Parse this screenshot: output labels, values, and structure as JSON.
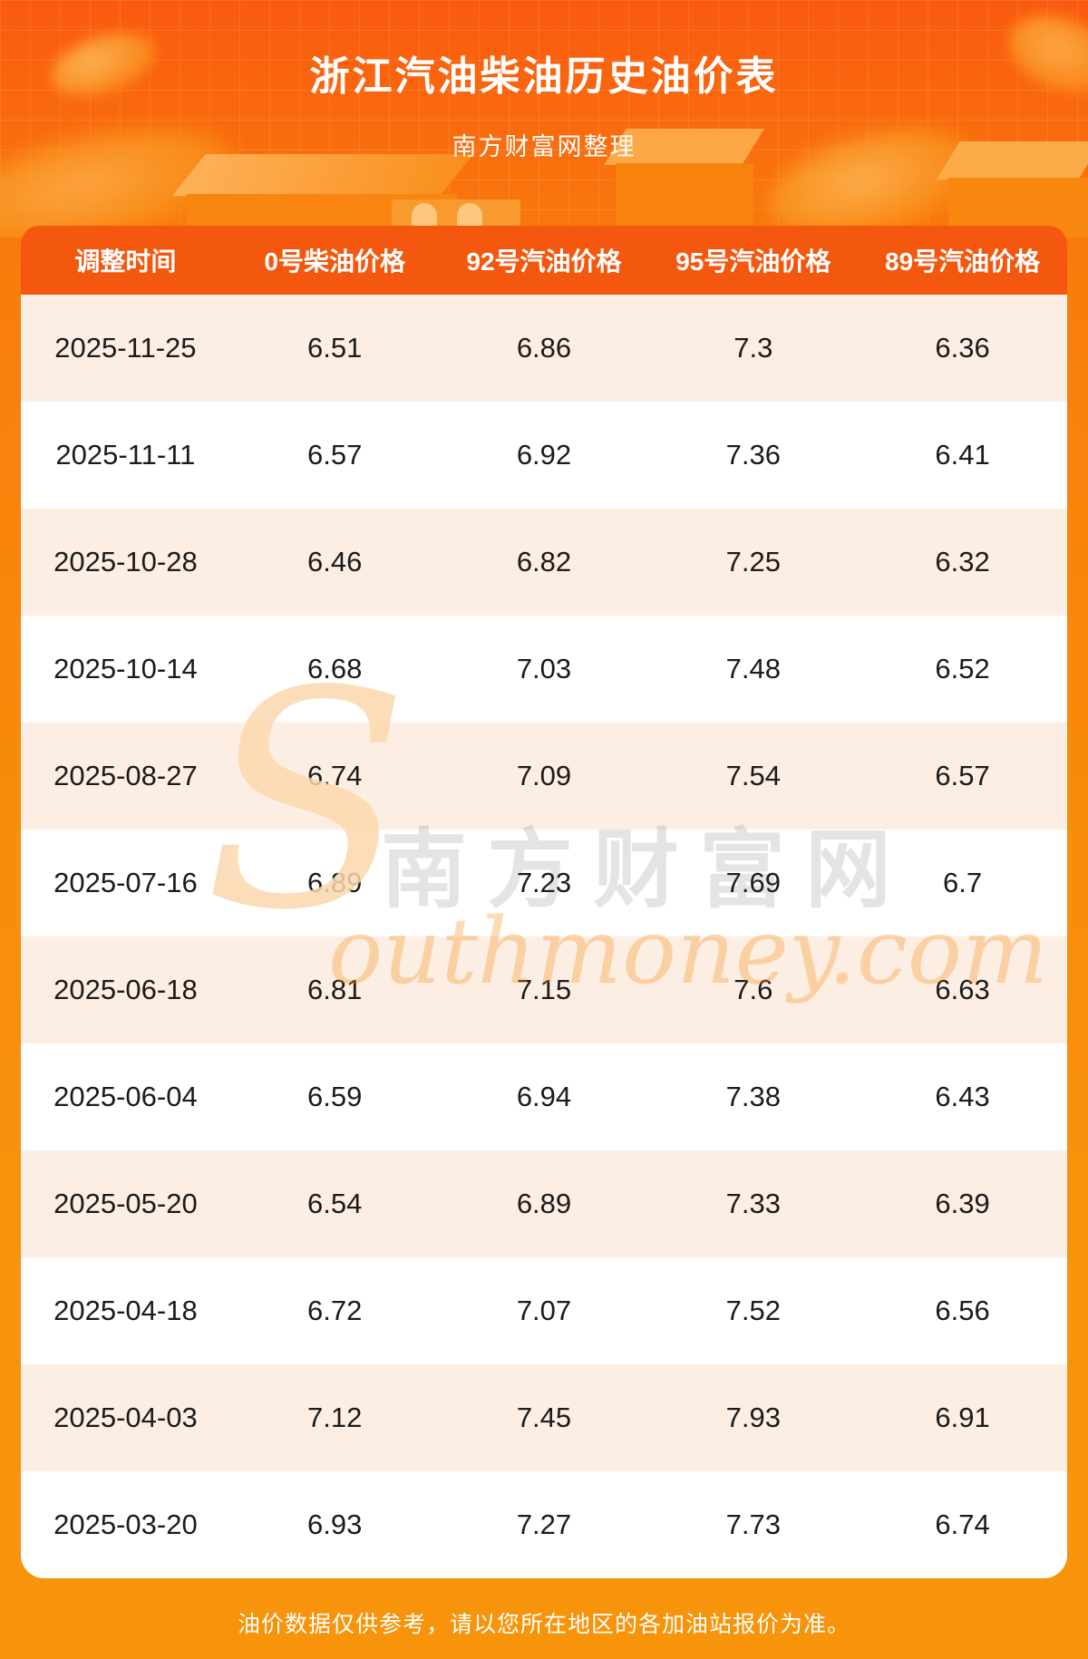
{
  "banner": {
    "title": "浙江汽油柴油历史油价表",
    "subtitle": "南方财富网整理"
  },
  "table": {
    "columns": [
      "调整时间",
      "0号柴油价格",
      "92号汽油价格",
      "95号汽油价格",
      "89号汽油价格"
    ],
    "rows": [
      [
        "2025-11-25",
        "6.51",
        "6.86",
        "7.3",
        "6.36"
      ],
      [
        "2025-11-11",
        "6.57",
        "6.92",
        "7.36",
        "6.41"
      ],
      [
        "2025-10-28",
        "6.46",
        "6.82",
        "7.25",
        "6.32"
      ],
      [
        "2025-10-14",
        "6.68",
        "7.03",
        "7.48",
        "6.52"
      ],
      [
        "2025-08-27",
        "6.74",
        "7.09",
        "7.54",
        "6.57"
      ],
      [
        "2025-07-16",
        "6.89",
        "7.23",
        "7.69",
        "6.7"
      ],
      [
        "2025-06-18",
        "6.81",
        "7.15",
        "7.6",
        "6.63"
      ],
      [
        "2025-06-04",
        "6.59",
        "6.94",
        "7.38",
        "6.43"
      ],
      [
        "2025-05-20",
        "6.54",
        "6.89",
        "7.33",
        "6.39"
      ],
      [
        "2025-04-18",
        "6.72",
        "7.07",
        "7.52",
        "6.56"
      ],
      [
        "2025-04-03",
        "7.12",
        "7.45",
        "7.93",
        "6.91"
      ],
      [
        "2025-03-20",
        "6.93",
        "7.27",
        "7.73",
        "6.74"
      ]
    ]
  },
  "watermark": {
    "initial": "S",
    "cn": "南方财富网",
    "en": "outhmoney.com"
  },
  "footer": {
    "note": "油价数据仅供参考，请以您所在地区的各加油站报价为准。"
  },
  "colors": {
    "banner_top": "#fa5a0f",
    "banner_bottom": "#f7940b",
    "table_header_bg": "#f3580e",
    "row_alt_bg": "#fceee3",
    "row_bg": "#ffffff",
    "text": "#1b1b1b"
  }
}
